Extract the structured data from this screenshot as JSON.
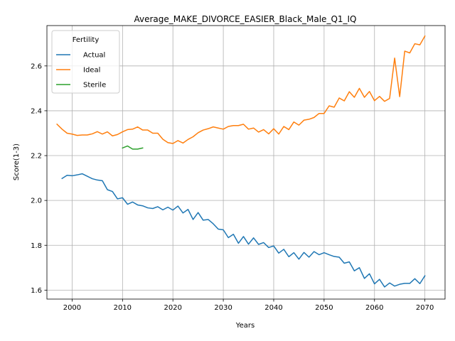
{
  "chart_data": {
    "type": "line",
    "title": "Average_MAKE_DIVORCE_EASIER_Black_Male_Q1_IQ",
    "xlabel": "Years",
    "ylabel": "Score(1-3)",
    "xlim": [
      1995,
      2074
    ],
    "ylim": [
      1.56,
      2.78
    ],
    "xticks": [
      2000,
      2010,
      2020,
      2030,
      2040,
      2050,
      2060,
      2070
    ],
    "xtick_labels": [
      "2000",
      "2010",
      "2020",
      "2030",
      "2040",
      "2050",
      "2060",
      "2070"
    ],
    "yticks": [
      1.6,
      1.8,
      2.0,
      2.2,
      2.4,
      2.6
    ],
    "ytick_labels": [
      "1.6",
      "1.8",
      "2.0",
      "2.2",
      "2.4",
      "2.6"
    ],
    "grid": true,
    "legend": {
      "title": "Fertility",
      "placement": "top-left",
      "entries": [
        "Actual",
        "Ideal",
        "Sterile"
      ]
    },
    "series": [
      {
        "name": "Actual",
        "color": "#1f77b4",
        "x": [
          1998,
          1999,
          2000,
          2001,
          2002,
          2003,
          2004,
          2005,
          2006,
          2007,
          2008,
          2009,
          2010,
          2011,
          2012,
          2013,
          2014,
          2015,
          2016,
          2017,
          2018,
          2019,
          2020,
          2021,
          2022,
          2023,
          2024,
          2025,
          2026,
          2027,
          2028,
          2029,
          2030,
          2031,
          2032,
          2033,
          2034,
          2035,
          2036,
          2037,
          2038,
          2039,
          2040,
          2041,
          2042,
          2043,
          2044,
          2045,
          2046,
          2047,
          2048,
          2049,
          2050,
          2051,
          2052,
          2053,
          2054,
          2055,
          2056,
          2057,
          2058,
          2059,
          2060,
          2061,
          2062,
          2063,
          2064,
          2065,
          2066,
          2067,
          2068,
          2069,
          2070
        ],
        "y": [
          2.098,
          2.112,
          2.11,
          2.114,
          2.119,
          2.108,
          2.097,
          2.091,
          2.088,
          2.048,
          2.04,
          2.007,
          2.012,
          1.983,
          1.993,
          1.98,
          1.976,
          1.967,
          1.964,
          1.972,
          1.958,
          1.97,
          1.957,
          1.975,
          1.944,
          1.96,
          1.915,
          1.946,
          1.912,
          1.915,
          1.896,
          1.872,
          1.869,
          1.834,
          1.849,
          1.809,
          1.839,
          1.805,
          1.833,
          1.804,
          1.812,
          1.79,
          1.797,
          1.765,
          1.782,
          1.749,
          1.767,
          1.738,
          1.768,
          1.747,
          1.772,
          1.758,
          1.767,
          1.758,
          1.75,
          1.747,
          1.72,
          1.726,
          1.686,
          1.7,
          1.652,
          1.673,
          1.628,
          1.648,
          1.614,
          1.632,
          1.618,
          1.626,
          1.63,
          1.63,
          1.651,
          1.629,
          1.664
        ]
      },
      {
        "name": "Ideal",
        "color": "#ff7f0e",
        "x": [
          1997,
          1998,
          1999,
          2000,
          2001,
          2002,
          2003,
          2004,
          2005,
          2006,
          2007,
          2008,
          2009,
          2010,
          2011,
          2012,
          2013,
          2014,
          2015,
          2016,
          2017,
          2018,
          2019,
          2020,
          2021,
          2022,
          2023,
          2024,
          2025,
          2026,
          2027,
          2028,
          2029,
          2030,
          2031,
          2032,
          2033,
          2034,
          2035,
          2036,
          2037,
          2038,
          2039,
          2040,
          2041,
          2042,
          2043,
          2044,
          2045,
          2046,
          2047,
          2048,
          2049,
          2050,
          2051,
          2052,
          2053,
          2054,
          2055,
          2056,
          2057,
          2058,
          2059,
          2060,
          2061,
          2062,
          2063,
          2064,
          2065,
          2066,
          2067,
          2068,
          2069,
          2070
        ],
        "y": [
          2.34,
          2.318,
          2.3,
          2.296,
          2.29,
          2.292,
          2.292,
          2.297,
          2.307,
          2.296,
          2.306,
          2.288,
          2.294,
          2.306,
          2.316,
          2.318,
          2.328,
          2.314,
          2.314,
          2.3,
          2.3,
          2.273,
          2.258,
          2.254,
          2.267,
          2.256,
          2.272,
          2.284,
          2.302,
          2.314,
          2.32,
          2.328,
          2.323,
          2.318,
          2.33,
          2.334,
          2.334,
          2.34,
          2.318,
          2.323,
          2.305,
          2.316,
          2.297,
          2.32,
          2.296,
          2.33,
          2.316,
          2.35,
          2.336,
          2.358,
          2.362,
          2.37,
          2.388,
          2.388,
          2.422,
          2.416,
          2.457,
          2.444,
          2.485,
          2.46,
          2.5,
          2.46,
          2.486,
          2.445,
          2.464,
          2.442,
          2.455,
          2.635,
          2.463,
          2.666,
          2.658,
          2.699,
          2.694,
          2.733
        ]
      },
      {
        "name": "Sterile",
        "color": "#2ca02c",
        "x": [
          2010,
          2011,
          2012,
          2013,
          2014
        ],
        "y": [
          2.234,
          2.243,
          2.229,
          2.229,
          2.234
        ]
      }
    ]
  }
}
